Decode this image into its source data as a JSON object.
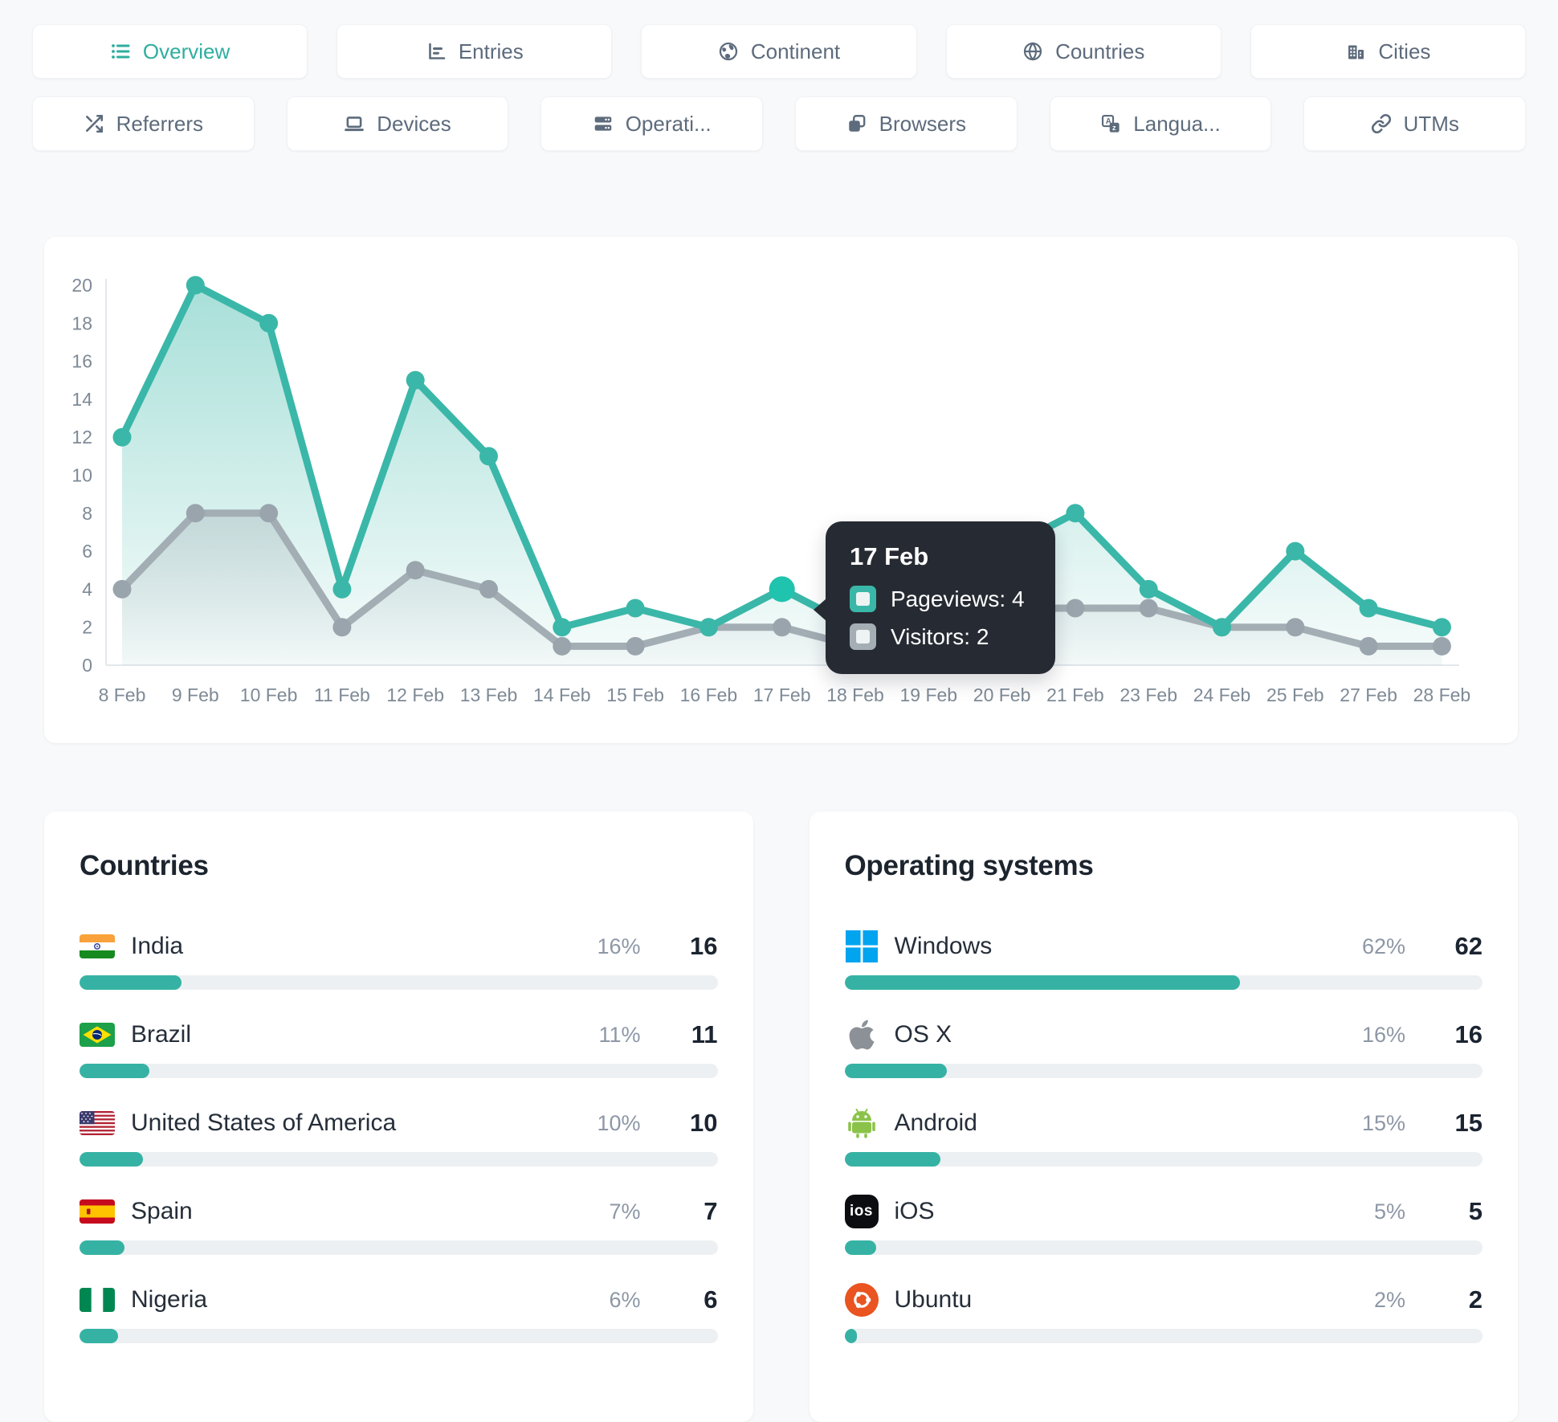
{
  "colors": {
    "accent": "#2fae9f",
    "bar_fill": "#36b2a4",
    "pageviews_line": "#3ab7a8",
    "pageviews_hover_dot": "#1fc3ae",
    "visitors_line": "#a3adb4",
    "visitors_dot": "#99a4ac",
    "tooltip_bg": "#262b33",
    "axis_text": "#7e8a96",
    "page_bg": "#f7f9fa"
  },
  "tabs": {
    "row1": [
      {
        "label": "Overview",
        "icon": "list-icon",
        "active": true
      },
      {
        "label": "Entries",
        "icon": "entries-chart-icon",
        "active": false
      },
      {
        "label": "Continent",
        "icon": "earth-icon",
        "active": false
      },
      {
        "label": "Countries",
        "icon": "globe-icon",
        "active": false
      },
      {
        "label": "Cities",
        "icon": "buildings-icon",
        "active": false
      }
    ],
    "row2": [
      {
        "label": "Referrers",
        "icon": "shuffle-icon",
        "active": false
      },
      {
        "label": "Devices",
        "icon": "laptop-icon",
        "active": false
      },
      {
        "label": "Operati...",
        "icon": "server-icon",
        "active": false
      },
      {
        "label": "Browsers",
        "icon": "browser-windows-icon",
        "active": false
      },
      {
        "label": "Langua...",
        "icon": "translate-icon",
        "active": false
      },
      {
        "label": "UTMs",
        "icon": "link-icon",
        "active": false
      }
    ]
  },
  "chart_data": {
    "type": "line",
    "title": "",
    "xlabel": "",
    "ylabel": "",
    "ylim": [
      0,
      20
    ],
    "y_ticks": [
      0,
      2,
      4,
      6,
      8,
      10,
      12,
      14,
      16,
      18,
      20
    ],
    "grid": false,
    "x": [
      "8 Feb",
      "9 Feb",
      "10 Feb",
      "11 Feb",
      "12 Feb",
      "13 Feb",
      "14 Feb",
      "15 Feb",
      "16 Feb",
      "17 Feb",
      "18 Feb",
      "19 Feb",
      "20 Feb",
      "21 Feb",
      "23 Feb",
      "24 Feb",
      "25 Feb",
      "27 Feb",
      "28 Feb"
    ],
    "series": [
      {
        "name": "Pageviews",
        "color": "#3ab7a8",
        "values": [
          12,
          20,
          18,
          4,
          15,
          11,
          2,
          3,
          2,
          4,
          2,
          3,
          6,
          8,
          4,
          2,
          6,
          3,
          2
        ]
      },
      {
        "name": "Visitors",
        "color": "#a3adb4",
        "values": [
          4,
          8,
          8,
          2,
          5,
          4,
          1,
          1,
          2,
          2,
          1,
          1,
          3,
          3,
          3,
          2,
          2,
          1,
          1
        ]
      }
    ],
    "hover_index": 9,
    "tooltip": {
      "title": "17 Feb",
      "rows": [
        {
          "text": "Pageviews: 4",
          "color": "#3ab7a8"
        },
        {
          "text": "Visitors: 2",
          "color": "#a6aeb5"
        }
      ]
    }
  },
  "countries_panel": {
    "title": "Countries",
    "rows": [
      {
        "name": "India",
        "flag": "india-flag",
        "pct_label": "16%",
        "pct": 16,
        "count": 16
      },
      {
        "name": "Brazil",
        "flag": "brazil-flag",
        "pct_label": "11%",
        "pct": 11,
        "count": 11
      },
      {
        "name": "United States of America",
        "flag": "usa-flag",
        "pct_label": "10%",
        "pct": 10,
        "count": 10
      },
      {
        "name": "Spain",
        "flag": "spain-flag",
        "pct_label": "7%",
        "pct": 7,
        "count": 7
      },
      {
        "name": "Nigeria",
        "flag": "nigeria-flag",
        "pct_label": "6%",
        "pct": 6,
        "count": 6
      }
    ]
  },
  "os_panel": {
    "title": "Operating systems",
    "rows": [
      {
        "name": "Windows",
        "icon": "windows-icon",
        "pct_label": "62%",
        "pct": 62,
        "count": 62
      },
      {
        "name": "OS X",
        "icon": "apple-icon",
        "pct_label": "16%",
        "pct": 16,
        "count": 16
      },
      {
        "name": "Android",
        "icon": "android-icon",
        "pct_label": "15%",
        "pct": 15,
        "count": 15
      },
      {
        "name": "iOS",
        "icon": "ios-icon",
        "pct_label": "5%",
        "pct": 5,
        "count": 5
      },
      {
        "name": "Ubuntu",
        "icon": "ubuntu-icon",
        "pct_label": "2%",
        "pct": 2,
        "count": 2
      }
    ]
  }
}
